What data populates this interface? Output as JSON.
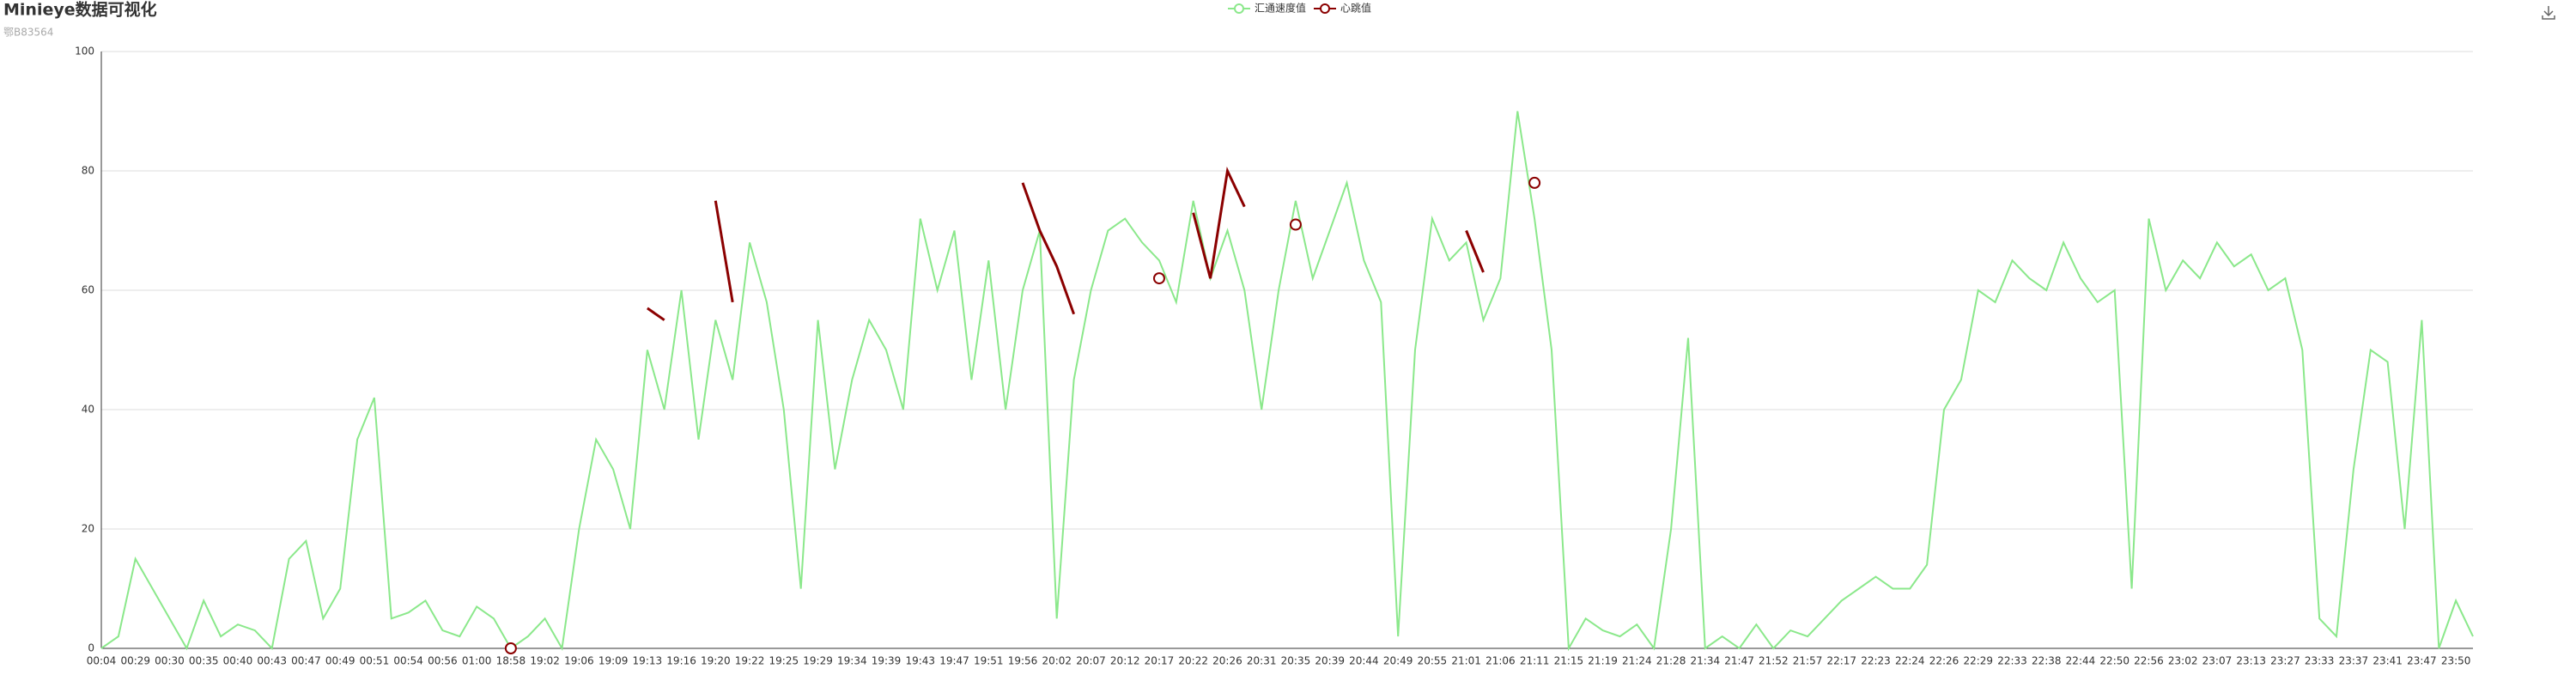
{
  "chart_data": {
    "type": "line",
    "title": "Minieye数据可视化",
    "subtitle": "鄂B83564",
    "categories": [
      "00:04",
      null,
      "00:29",
      null,
      "00:30",
      null,
      "00:35",
      null,
      "00:40",
      null,
      "00:43",
      null,
      "00:47",
      null,
      "00:49",
      null,
      "00:51",
      null,
      "00:54",
      null,
      "00:56",
      null,
      "01:00",
      null,
      "18:58",
      null,
      "19:02",
      null,
      "19:06",
      null,
      "19:09",
      null,
      "19:13",
      null,
      "19:16",
      null,
      "19:20",
      null,
      "19:22",
      null,
      "19:25",
      null,
      "19:29",
      null,
      "19:34",
      null,
      "19:39",
      null,
      "19:43",
      null,
      "19:47",
      null,
      "19:51",
      null,
      "19:56",
      null,
      "20:02",
      null,
      "20:07",
      null,
      "20:12",
      null,
      "20:17",
      null,
      "20:22",
      null,
      "20:26",
      null,
      "20:31",
      null,
      "20:35",
      null,
      "20:39",
      null,
      "20:44",
      null,
      "20:49",
      null,
      "20:55",
      null,
      "21:01",
      null,
      "21:06",
      null,
      "21:11",
      null,
      "21:15",
      null,
      "21:19",
      null,
      "21:24",
      null,
      "21:28",
      null,
      "21:34",
      null,
      "21:47",
      null,
      "21:52",
      null,
      "21:57",
      null,
      "22:17",
      null,
      "22:23",
      null,
      "22:24",
      null,
      "22:26",
      null,
      "22:29",
      null,
      "22:33",
      null,
      "22:38",
      null,
      "22:44",
      null,
      "22:50",
      null,
      "22:56",
      null,
      "23:02",
      null,
      "23:07",
      null,
      "23:13",
      null,
      "23:27",
      null,
      "23:33",
      null,
      "23:37",
      null,
      "23:41",
      null,
      "23:47",
      null,
      "23:50",
      null
    ],
    "series": [
      {
        "name": "汇通速度值",
        "color": "#8be88b",
        "values": [
          0,
          2,
          15,
          10,
          5,
          0,
          8,
          2,
          4,
          3,
          0,
          15,
          18,
          5,
          10,
          35,
          42,
          5,
          6,
          8,
          3,
          2,
          7,
          5,
          0,
          2,
          5,
          0,
          20,
          35,
          30,
          20,
          50,
          40,
          60,
          35,
          55,
          45,
          68,
          58,
          40,
          10,
          55,
          30,
          45,
          55,
          50,
          40,
          72,
          60,
          70,
          45,
          65,
          40,
          60,
          70,
          5,
          45,
          60,
          70,
          72,
          68,
          65,
          58,
          75,
          62,
          70,
          60,
          40,
          60,
          75,
          62,
          70,
          78,
          65,
          58,
          2,
          50,
          72,
          65,
          68,
          55,
          62,
          90,
          72,
          50,
          0,
          5,
          3,
          2,
          4,
          0,
          20,
          52,
          0,
          2,
          0,
          4,
          0,
          3,
          2,
          5,
          8,
          10,
          12,
          10,
          10,
          14,
          40,
          45,
          60,
          58,
          65,
          62,
          60,
          68,
          62,
          58,
          60,
          10,
          72,
          60,
          65,
          62,
          68,
          64,
          66,
          60,
          62,
          50,
          5,
          2,
          30,
          50,
          48,
          20,
          55,
          0,
          8,
          2
        ]
      },
      {
        "name": "心跳值",
        "color": "#8b0000",
        "values": [
          null,
          null,
          null,
          null,
          null,
          null,
          null,
          null,
          null,
          null,
          null,
          null,
          null,
          null,
          null,
          null,
          null,
          null,
          null,
          null,
          null,
          null,
          null,
          null,
          0,
          null,
          null,
          null,
          null,
          null,
          null,
          null,
          57,
          55,
          null,
          null,
          75,
          58,
          null,
          null,
          null,
          null,
          null,
          null,
          null,
          null,
          null,
          null,
          null,
          null,
          null,
          null,
          null,
          null,
          78,
          70,
          64,
          56,
          null,
          null,
          null,
          null,
          62,
          null,
          73,
          62,
          80,
          74,
          null,
          null,
          71,
          null,
          null,
          null,
          null,
          null,
          null,
          null,
          null,
          null,
          70,
          63,
          null,
          null,
          78,
          null,
          null,
          null,
          null,
          null,
          null,
          null,
          null,
          null,
          null,
          null,
          null,
          null,
          null,
          null,
          null,
          null,
          null,
          null,
          null,
          null,
          null,
          null,
          null,
          null,
          null,
          null,
          null,
          null,
          null,
          null,
          null,
          null,
          null,
          null,
          null,
          null,
          null,
          null,
          null,
          null,
          null,
          null,
          null,
          null,
          null,
          null,
          null,
          null,
          null,
          null,
          null,
          null,
          null,
          null
        ]
      }
    ],
    "ylim": [
      0,
      100
    ],
    "yticks": [
      0,
      20,
      40,
      60,
      80,
      100
    ],
    "grid": true,
    "legend": "top"
  }
}
